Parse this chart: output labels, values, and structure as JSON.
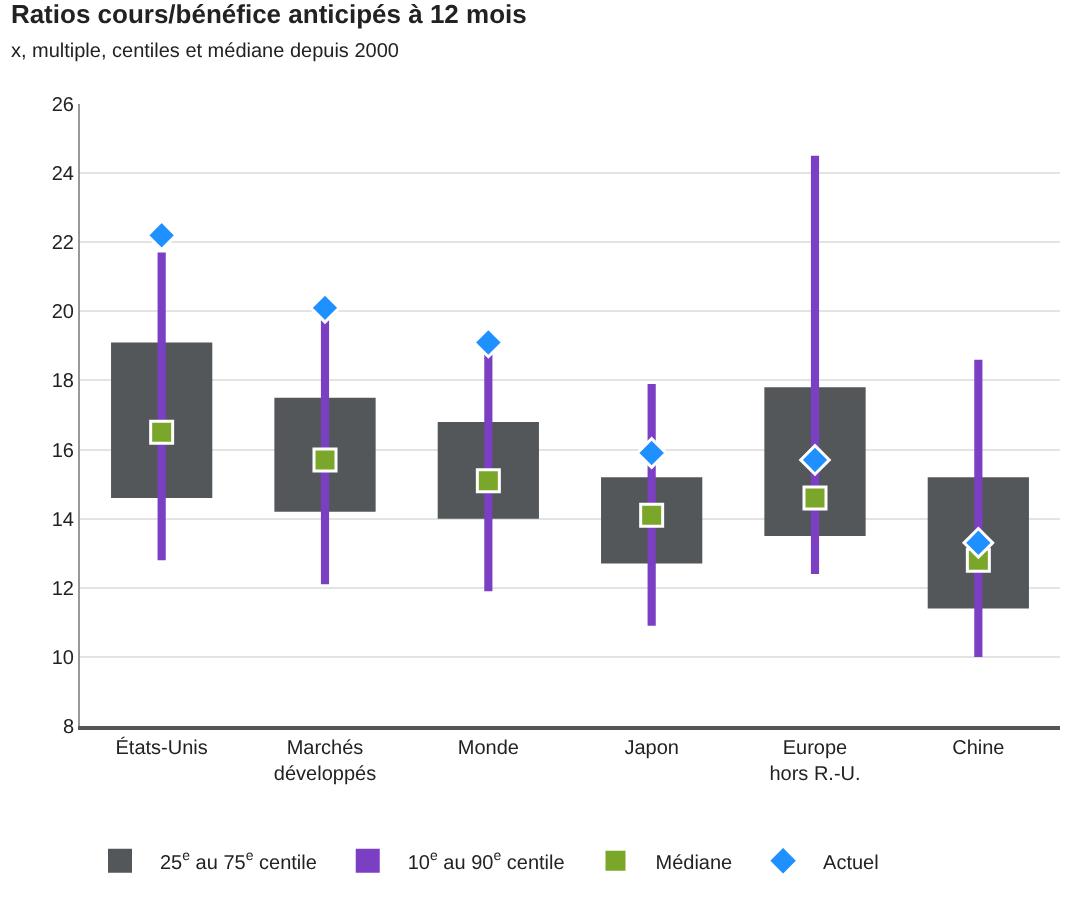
{
  "chart_data": {
    "type": "bar",
    "title": "Ratios cours/bénéfice anticipés à 12 mois",
    "subtitle": "x, multiple, centiles et médiane depuis 2000",
    "categories": [
      "États-Unis",
      "Marchés développés",
      "Monde",
      "Japon",
      "Europe hors R.-U.",
      "Chine"
    ],
    "series": [
      {
        "name": "25$^{e}$ au 75$^{e}$ centile",
        "color": "#53575a",
        "base": [
          14.6,
          14.2,
          14.0,
          12.7,
          13.5,
          11.4
        ],
        "values": [
          4.5,
          3.3,
          2.8,
          2.5,
          4.3,
          3.8
        ]
      },
      {
        "name": "10$^{e}$ au 90$^{e}$ centile",
        "color": "#7b3fc4",
        "base": [
          12.8,
          12.1,
          11.9,
          10.9,
          12.4,
          10.0
        ],
        "values": [
          8.9,
          7.7,
          6.9,
          7.0,
          12.1,
          8.6
        ]
      },
      {
        "type": "scatter",
        "name": "Médiane",
        "color": "#7aa72a",
        "marker": "square",
        "values": [
          16.5,
          15.7,
          15.1,
          14.1,
          14.6,
          12.8
        ]
      },
      {
        "type": "scatter",
        "name": "Actuel",
        "color": "#1e90ff",
        "marker": "diamond",
        "values": [
          22.2,
          20.1,
          19.1,
          15.9,
          15.7,
          13.3
        ]
      }
    ],
    "ylim": [
      8,
      26
    ],
    "yticks": [
      8,
      10,
      12,
      14,
      16,
      18,
      20,
      22,
      24,
      26
    ],
    "grid": "y",
    "legend": "bottom"
  }
}
